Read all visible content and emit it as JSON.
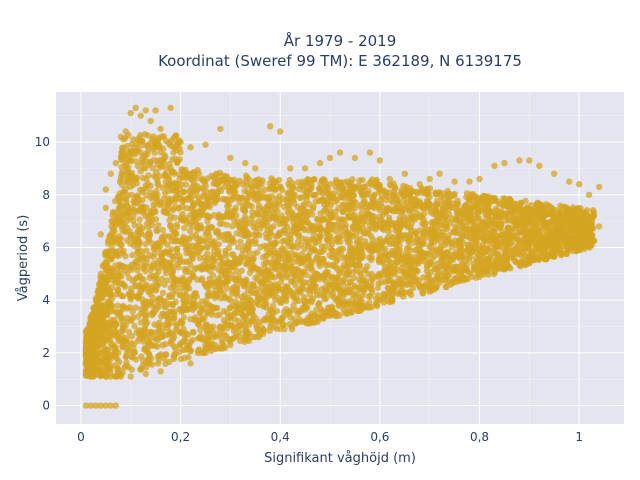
{
  "chart_data": {
    "type": "scatter",
    "title": "År 1979 - 2019",
    "subtitle": "Koordinat (Sweref 99 TM): E 362189, N 6139175",
    "xlabel": "Signifikant våghöjd (m)",
    "ylabel": "Vågperiod (s)",
    "xlim": [
      -0.05,
      1.09
    ],
    "ylim": [
      -0.7,
      11.9
    ],
    "xticks": [
      0,
      0.2,
      0.4,
      0.6,
      0.8,
      1
    ],
    "xtick_labels": [
      "0",
      "0,2",
      "0,4",
      "0,6",
      "0,8",
      "1"
    ],
    "yticks": [
      0,
      2,
      4,
      6,
      8,
      10
    ],
    "ytick_labels": [
      "0",
      "2",
      "4",
      "6",
      "8",
      "10"
    ],
    "grid": true,
    "legend": "none",
    "colors": {
      "marker": "#d4a421",
      "plot_bg": "#e5e5f0",
      "grid": "#ffffff",
      "text": "#2a3f5f"
    },
    "series": [
      {
        "values_note_points": [
          [
            0.01,
            0
          ],
          [
            0.02,
            0
          ],
          [
            0.03,
            0
          ],
          [
            0.04,
            0
          ],
          [
            0.05,
            0
          ],
          [
            0.06,
            0
          ],
          [
            0.07,
            0
          ],
          [
            0.01,
            1.2
          ],
          [
            0.01,
            1.6
          ],
          [
            0.01,
            2.0
          ],
          [
            0.02,
            1.1
          ],
          [
            0.02,
            2.6
          ],
          [
            0.02,
            3.2
          ],
          [
            0.03,
            1.3
          ],
          [
            0.03,
            3.0
          ],
          [
            0.03,
            4.0
          ],
          [
            0.04,
            1.2
          ],
          [
            0.04,
            5.0
          ],
          [
            0.04,
            6.5
          ],
          [
            0.05,
            1.1
          ],
          [
            0.05,
            7.5
          ],
          [
            0.05,
            8.2
          ],
          [
            0.06,
            1.1
          ],
          [
            0.06,
            8.8
          ],
          [
            0.07,
            1.1
          ],
          [
            0.07,
            9.2
          ],
          [
            0.08,
            1.1
          ],
          [
            0.08,
            10.2
          ],
          [
            0.09,
            10.4
          ],
          [
            0.1,
            1.1
          ],
          [
            0.1,
            11.1
          ],
          [
            0.11,
            11.3
          ],
          [
            0.12,
            11.0
          ],
          [
            0.13,
            1.2
          ],
          [
            0.13,
            11.2
          ],
          [
            0.14,
            10.8
          ],
          [
            0.15,
            11.2
          ],
          [
            0.16,
            1.3
          ],
          [
            0.16,
            10.5
          ],
          [
            0.18,
            11.3
          ],
          [
            0.2,
            10.0
          ],
          [
            0.22,
            1.6
          ],
          [
            0.22,
            9.8
          ],
          [
            0.25,
            2.0
          ],
          [
            0.25,
            9.9
          ],
          [
            0.28,
            10.5
          ],
          [
            0.3,
            2.3
          ],
          [
            0.3,
            9.4
          ],
          [
            0.33,
            9.2
          ],
          [
            0.35,
            2.6
          ],
          [
            0.35,
            9.0
          ],
          [
            0.38,
            10.6
          ],
          [
            0.4,
            2.9
          ],
          [
            0.4,
            10.4
          ],
          [
            0.42,
            9.0
          ],
          [
            0.45,
            3.2
          ],
          [
            0.45,
            9.0
          ],
          [
            0.48,
            9.2
          ],
          [
            0.5,
            3.5
          ],
          [
            0.5,
            9.4
          ],
          [
            0.52,
            9.6
          ],
          [
            0.55,
            3.8
          ],
          [
            0.55,
            9.4
          ],
          [
            0.58,
            9.6
          ],
          [
            0.6,
            4.0
          ],
          [
            0.6,
            9.3
          ],
          [
            0.62,
            8.6
          ],
          [
            0.65,
            4.3
          ],
          [
            0.65,
            8.8
          ],
          [
            0.68,
            8.4
          ],
          [
            0.7,
            4.5
          ],
          [
            0.7,
            8.6
          ],
          [
            0.72,
            8.8
          ],
          [
            0.75,
            4.8
          ],
          [
            0.75,
            8.5
          ],
          [
            0.78,
            8.5
          ],
          [
            0.8,
            5.0
          ],
          [
            0.8,
            8.6
          ],
          [
            0.83,
            9.1
          ],
          [
            0.85,
            5.2
          ],
          [
            0.85,
            9.2
          ],
          [
            0.88,
            9.3
          ],
          [
            0.9,
            5.4
          ],
          [
            0.9,
            9.3
          ],
          [
            0.92,
            9.1
          ],
          [
            0.95,
            5.7
          ],
          [
            0.95,
            8.8
          ],
          [
            0.98,
            8.5
          ],
          [
            1.0,
            6.0
          ],
          [
            1.0,
            8.4
          ],
          [
            1.02,
            8.0
          ],
          [
            1.04,
            8.3
          ],
          [
            1.04,
            6.8
          ]
        ]
      }
    ]
  }
}
